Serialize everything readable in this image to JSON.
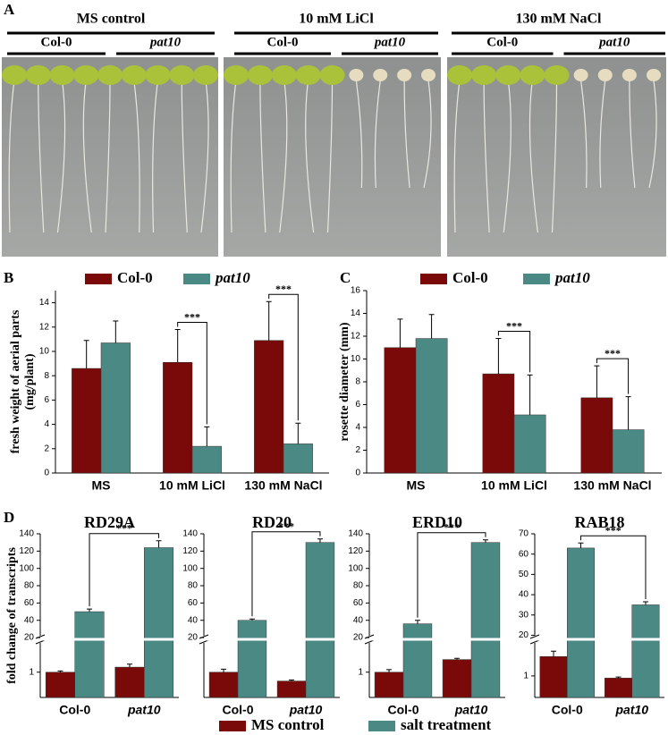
{
  "panel_labels": [
    "A",
    "B",
    "C",
    "D"
  ],
  "photo_panel": {
    "groups": [
      {
        "title": "MS control",
        "labels": [
          "Col-0",
          "pat10"
        ]
      },
      {
        "title": "10 mM LiCl",
        "labels": [
          "Col-0",
          "pat10"
        ]
      },
      {
        "title": "130 mM NaCl",
        "labels": [
          "Col-0",
          "pat10"
        ]
      }
    ]
  },
  "chart_data": [
    {
      "type": "bar",
      "ylabel": [
        "fresh weight of aerial parts",
        "(mg/plant)"
      ],
      "categories": [
        "MS",
        "10 mM LiCl",
        "130 mM NaCl"
      ],
      "series": [
        {
          "name": "Col-0",
          "color": "#7a0a0a",
          "values": [
            8.6,
            9.1,
            10.9
          ],
          "errors": [
            2.3,
            2.7,
            3.2
          ]
        },
        {
          "name": "pat10",
          "color": "#4b8985",
          "values": [
            10.7,
            2.2,
            2.4
          ],
          "errors": [
            1.8,
            1.6,
            1.7
          ]
        }
      ],
      "ylim": [
        0,
        15
      ],
      "yticks": [
        0,
        2,
        4,
        6,
        8,
        10,
        12,
        14
      ],
      "significance": [
        null,
        "***",
        "***"
      ]
    },
    {
      "type": "bar",
      "ylabel": "rosette diameter (mm)",
      "categories": [
        "MS",
        "10 mM LiCl",
        "130 mM NaCl"
      ],
      "series": [
        {
          "name": "Col-0",
          "color": "#7a0a0a",
          "values": [
            11.0,
            8.7,
            6.6
          ],
          "errors": [
            2.5,
            3.1,
            2.8
          ]
        },
        {
          "name": "pat10",
          "color": "#4b8985",
          "values": [
            11.8,
            5.1,
            3.8
          ],
          "errors": [
            2.1,
            3.5,
            2.9
          ]
        }
      ],
      "ylim": [
        0,
        16
      ],
      "yticks": [
        0,
        2,
        4,
        6,
        8,
        10,
        12,
        14,
        16
      ],
      "significance": [
        null,
        "***",
        "***"
      ]
    },
    {
      "type": "broken_bar",
      "title": "RD29A",
      "ylabel": "fold change of transcripts",
      "categories": [
        "Col-0",
        "pat10"
      ],
      "series": [
        {
          "name": "MS control",
          "color": "#7a0a0a",
          "values": [
            1.0,
            1.2
          ],
          "errors": [
            0.05,
            0.12
          ]
        },
        {
          "name": "salt treatment",
          "color": "#4b8985",
          "values": [
            50,
            124
          ],
          "errors": [
            3,
            8
          ]
        }
      ],
      "ylim": [
        0,
        140
      ],
      "ybreak": [
        2.3,
        18
      ],
      "yticks": [
        1,
        20,
        40,
        60,
        80,
        100,
        120,
        140
      ],
      "significance": "***"
    },
    {
      "type": "broken_bar",
      "title": "RD20",
      "categories": [
        "Col-0",
        "pat10"
      ],
      "series": [
        {
          "color": "#7a0a0a",
          "values": [
            1.0,
            0.65
          ],
          "errors": [
            0.12,
            0.04
          ]
        },
        {
          "color": "#4b8985",
          "values": [
            40,
            130
          ],
          "errors": [
            1.5,
            4
          ]
        }
      ],
      "ylim": [
        0,
        140
      ],
      "ybreak": [
        2.3,
        18
      ],
      "yticks": [
        20,
        40,
        60,
        80,
        100,
        120,
        140
      ],
      "significance": "***"
    },
    {
      "type": "broken_bar",
      "title": "ERD10",
      "categories": [
        "Col-0",
        "pat10"
      ],
      "series": [
        {
          "color": "#7a0a0a",
          "values": [
            1.0,
            1.5
          ],
          "errors": [
            0.1,
            0.05
          ]
        },
        {
          "color": "#4b8985",
          "values": [
            36,
            130
          ],
          "errors": [
            4,
            3
          ]
        }
      ],
      "ylim": [
        0,
        140
      ],
      "ybreak": [
        2.3,
        18
      ],
      "yticks": [
        1,
        20,
        40,
        60,
        80,
        100,
        120,
        140
      ],
      "significance": "***"
    },
    {
      "type": "broken_bar",
      "title": "RAB18",
      "categories": [
        "Col-0",
        "pat10"
      ],
      "series": [
        {
          "color": "#7a0a0a",
          "values": [
            1.9,
            0.9
          ],
          "errors": [
            0.25,
            0.05
          ]
        },
        {
          "color": "#4b8985",
          "values": [
            63,
            35
          ],
          "errors": [
            2.5,
            1.5
          ]
        }
      ],
      "ylim": [
        0,
        70
      ],
      "ybreak": [
        2.7,
        18
      ],
      "yticks": [
        1,
        20,
        30,
        40,
        50,
        60,
        70
      ],
      "significance": "***"
    }
  ]
}
